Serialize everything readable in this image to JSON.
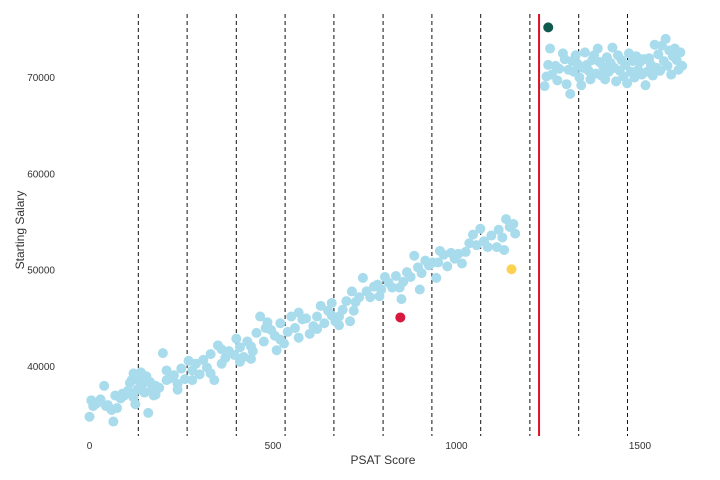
{
  "chart_data": {
    "type": "scatter",
    "title": "",
    "xlabel": "PSAT Score",
    "ylabel": "Starting Salary",
    "xlim": [
      -15,
      1620
    ],
    "ylim": [
      32800,
      77000
    ],
    "x_ticks": [
      0,
      500,
      1000,
      1500
    ],
    "y_ticks": [
      40000,
      50000,
      60000,
      70000
    ],
    "x_tick_labels": [
      "0",
      "500",
      "1000",
      "1500"
    ],
    "y_tick_labels": [
      "40000",
      "50000",
      "60000",
      "70000"
    ],
    "grid": false,
    "legend": "none",
    "bins": [
      133,
      266,
      400,
      533,
      666,
      800,
      933,
      1066,
      1200,
      1333,
      1466
    ],
    "threshold": 1225,
    "colors": {
      "points": "#a8dbec",
      "threshold": "#dd1122",
      "bins": "#111111",
      "axis_text": "#333333"
    },
    "series": [
      {
        "color": "#a8dbec",
        "points": [
          [
            0,
            34800
          ],
          [
            5,
            36500
          ],
          [
            10,
            35900
          ],
          [
            20,
            36200
          ],
          [
            30,
            36600
          ],
          [
            40,
            38000
          ],
          [
            50,
            36000
          ],
          [
            60,
            35500
          ],
          [
            65,
            34300
          ],
          [
            70,
            37000
          ],
          [
            75,
            35700
          ],
          [
            85,
            36700
          ],
          [
            95,
            37000
          ],
          [
            105,
            37500
          ],
          [
            110,
            38300
          ],
          [
            115,
            38600
          ],
          [
            120,
            36800
          ],
          [
            125,
            36100
          ],
          [
            130,
            37600
          ],
          [
            135,
            38500
          ],
          [
            140,
            39400
          ],
          [
            145,
            38200
          ],
          [
            150,
            37300
          ],
          [
            155,
            39000
          ],
          [
            160,
            35200
          ],
          [
            165,
            38400
          ],
          [
            170,
            37700
          ],
          [
            175,
            37000
          ],
          [
            180,
            38000
          ],
          [
            190,
            37800
          ],
          [
            200,
            41400
          ],
          [
            210,
            39600
          ],
          [
            220,
            38800
          ],
          [
            230,
            39100
          ],
          [
            240,
            38200
          ],
          [
            250,
            39800
          ],
          [
            260,
            38700
          ],
          [
            270,
            40600
          ],
          [
            280,
            39600
          ],
          [
            290,
            40300
          ],
          [
            300,
            39200
          ],
          [
            310,
            40700
          ],
          [
            320,
            39900
          ],
          [
            330,
            41300
          ],
          [
            340,
            38600
          ],
          [
            350,
            42200
          ],
          [
            360,
            41800
          ],
          [
            370,
            40900
          ],
          [
            380,
            41600
          ],
          [
            395,
            41200
          ],
          [
            400,
            42900
          ],
          [
            410,
            40500
          ],
          [
            420,
            41000
          ],
          [
            430,
            42600
          ],
          [
            440,
            42100
          ],
          [
            445,
            41600
          ],
          [
            455,
            43500
          ],
          [
            465,
            45200
          ],
          [
            475,
            42600
          ],
          [
            485,
            44600
          ],
          [
            495,
            43800
          ],
          [
            505,
            43200
          ],
          [
            510,
            41700
          ],
          [
            520,
            44500
          ],
          [
            530,
            42400
          ],
          [
            540,
            43600
          ],
          [
            550,
            45200
          ],
          [
            560,
            44000
          ],
          [
            570,
            45600
          ],
          [
            580,
            44900
          ],
          [
            590,
            45000
          ],
          [
            600,
            43400
          ],
          [
            610,
            44200
          ],
          [
            620,
            45200
          ],
          [
            630,
            46300
          ],
          [
            640,
            44500
          ],
          [
            650,
            45800
          ],
          [
            660,
            46600
          ],
          [
            670,
            44700
          ],
          [
            680,
            45200
          ],
          [
            690,
            45900
          ],
          [
            700,
            46800
          ],
          [
            710,
            44700
          ],
          [
            715,
            47800
          ],
          [
            725,
            46700
          ],
          [
            735,
            47200
          ],
          [
            745,
            49200
          ],
          [
            755,
            47800
          ],
          [
            765,
            47200
          ],
          [
            775,
            48300
          ],
          [
            785,
            48500
          ],
          [
            795,
            48000
          ],
          [
            805,
            49300
          ],
          [
            815,
            48700
          ],
          [
            825,
            48200
          ],
          [
            835,
            49400
          ],
          [
            845,
            48200
          ],
          [
            855,
            48800
          ],
          [
            865,
            49800
          ],
          [
            875,
            49300
          ],
          [
            885,
            51500
          ],
          [
            895,
            50300
          ],
          [
            905,
            49700
          ],
          [
            915,
            51000
          ],
          [
            925,
            50500
          ],
          [
            935,
            50800
          ],
          [
            945,
            49200
          ],
          [
            955,
            52000
          ],
          [
            965,
            51600
          ],
          [
            975,
            50400
          ],
          [
            985,
            51800
          ],
          [
            995,
            51200
          ],
          [
            1005,
            51700
          ],
          [
            1015,
            50700
          ],
          [
            1025,
            51900
          ],
          [
            1035,
            52800
          ],
          [
            1045,
            53700
          ],
          [
            1055,
            52600
          ],
          [
            1065,
            54300
          ],
          [
            1075,
            53000
          ],
          [
            1085,
            52400
          ],
          [
            1095,
            53600
          ],
          [
            1110,
            52400
          ],
          [
            1115,
            54200
          ],
          [
            1125,
            53400
          ],
          [
            1135,
            55300
          ],
          [
            1145,
            54500
          ],
          [
            1155,
            54800
          ],
          [
            1160,
            53800
          ],
          [
            1130,
            52100
          ],
          [
            950,
            50800
          ],
          [
            900,
            48000
          ],
          [
            850,
            47000
          ],
          [
            790,
            47300
          ],
          [
            720,
            45800
          ],
          [
            680,
            44300
          ],
          [
            660,
            45300
          ],
          [
            620,
            43900
          ],
          [
            570,
            43000
          ],
          [
            520,
            42800
          ],
          [
            480,
            44000
          ],
          [
            440,
            40800
          ],
          [
            410,
            42000
          ],
          [
            360,
            40300
          ],
          [
            330,
            39300
          ],
          [
            280,
            38600
          ],
          [
            240,
            37600
          ],
          [
            210,
            38600
          ],
          [
            180,
            37100
          ],
          [
            150,
            38700
          ],
          [
            120,
            39300
          ],
          [
            90,
            37200
          ],
          [
            45,
            35900
          ],
          [
            1240,
            69100
          ],
          [
            1245,
            70100
          ],
          [
            1250,
            71300
          ],
          [
            1255,
            73000
          ],
          [
            1260,
            70300
          ],
          [
            1270,
            71200
          ],
          [
            1275,
            69700
          ],
          [
            1280,
            70900
          ],
          [
            1290,
            72500
          ],
          [
            1295,
            71900
          ],
          [
            1300,
            69300
          ],
          [
            1305,
            70800
          ],
          [
            1310,
            68300
          ],
          [
            1315,
            71700
          ],
          [
            1320,
            70600
          ],
          [
            1325,
            72300
          ],
          [
            1330,
            71400
          ],
          [
            1335,
            70000
          ],
          [
            1340,
            69200
          ],
          [
            1345,
            71000
          ],
          [
            1350,
            72600
          ],
          [
            1355,
            71300
          ],
          [
            1360,
            70700
          ],
          [
            1365,
            69800
          ],
          [
            1370,
            71800
          ],
          [
            1375,
            72300
          ],
          [
            1380,
            70400
          ],
          [
            1385,
            73000
          ],
          [
            1390,
            71600
          ],
          [
            1395,
            70200
          ],
          [
            1400,
            71100
          ],
          [
            1405,
            69800
          ],
          [
            1410,
            72100
          ],
          [
            1415,
            70600
          ],
          [
            1420,
            71500
          ],
          [
            1425,
            73100
          ],
          [
            1430,
            71000
          ],
          [
            1435,
            69600
          ],
          [
            1440,
            72300
          ],
          [
            1445,
            70700
          ],
          [
            1450,
            71800
          ],
          [
            1455,
            70100
          ],
          [
            1460,
            71300
          ],
          [
            1465,
            69400
          ],
          [
            1470,
            72500
          ],
          [
            1475,
            70600
          ],
          [
            1480,
            71700
          ],
          [
            1485,
            70000
          ],
          [
            1490,
            72200
          ],
          [
            1495,
            70800
          ],
          [
            1500,
            71600
          ],
          [
            1505,
            70300
          ],
          [
            1510,
            71900
          ],
          [
            1515,
            69200
          ],
          [
            1520,
            70600
          ],
          [
            1525,
            72000
          ],
          [
            1530,
            71300
          ],
          [
            1535,
            70200
          ],
          [
            1540,
            73400
          ],
          [
            1545,
            71000
          ],
          [
            1550,
            72400
          ],
          [
            1555,
            70700
          ],
          [
            1560,
            73300
          ],
          [
            1565,
            71700
          ],
          [
            1570,
            74000
          ],
          [
            1575,
            71200
          ],
          [
            1580,
            72800
          ],
          [
            1585,
            70300
          ],
          [
            1590,
            72200
          ],
          [
            1595,
            73000
          ],
          [
            1600,
            71800
          ],
          [
            1605,
            70800
          ],
          [
            1610,
            72600
          ],
          [
            1615,
            71200
          ]
        ]
      }
    ],
    "highlights": [
      {
        "x": 1250,
        "y": 75200,
        "color": "#10594e"
      },
      {
        "x": 847,
        "y": 45100,
        "color": "#d7193f"
      },
      {
        "x": 1150,
        "y": 50100,
        "color": "#fdd24f"
      }
    ]
  }
}
